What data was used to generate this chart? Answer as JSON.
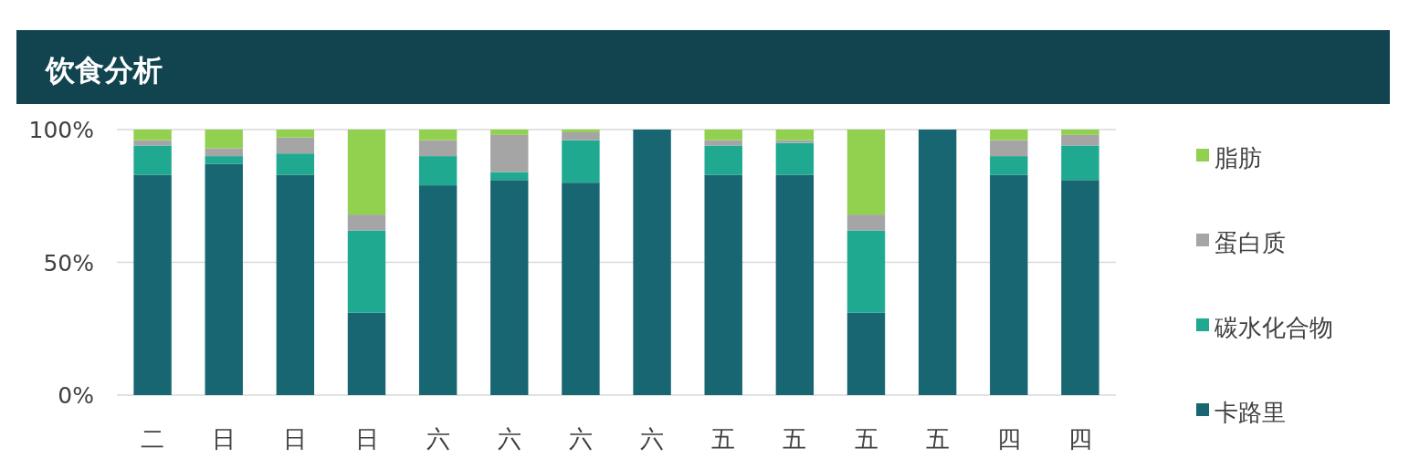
{
  "chart_data": {
    "type": "bar",
    "title": "饮食分析",
    "stacked": true,
    "categories": [
      "二",
      "日",
      "日",
      "日",
      "六",
      "六",
      "六",
      "六",
      "五",
      "五",
      "五",
      "五",
      "四",
      "四"
    ],
    "series": [
      {
        "name": "卡路里",
        "color": "#186672",
        "values": [
          83,
          87,
          83,
          31,
          79,
          81,
          80,
          100,
          83,
          83,
          31,
          100,
          83,
          81
        ]
      },
      {
        "name": "碳水化合物",
        "color": "#1fa990",
        "values": [
          11,
          3,
          8,
          31,
          11,
          3,
          16,
          0,
          11,
          12,
          31,
          0,
          7,
          13
        ]
      },
      {
        "name": "蛋白质",
        "color": "#a5a5a5",
        "values": [
          2,
          3,
          6,
          6,
          6,
          14,
          3,
          0,
          2,
          1,
          6,
          0,
          6,
          4
        ]
      },
      {
        "name": "脂肪",
        "color": "#92d050",
        "values": [
          4,
          7,
          3,
          32,
          4,
          2,
          1,
          0,
          4,
          4,
          32,
          0,
          4,
          2
        ]
      }
    ],
    "ylim": [
      0,
      100
    ],
    "yticks": [
      {
        "value": 0,
        "label": "0%"
      },
      {
        "value": 50,
        "label": "50%"
      },
      {
        "value": 100,
        "label": "100%"
      }
    ],
    "grid": "y",
    "legend": "right"
  }
}
